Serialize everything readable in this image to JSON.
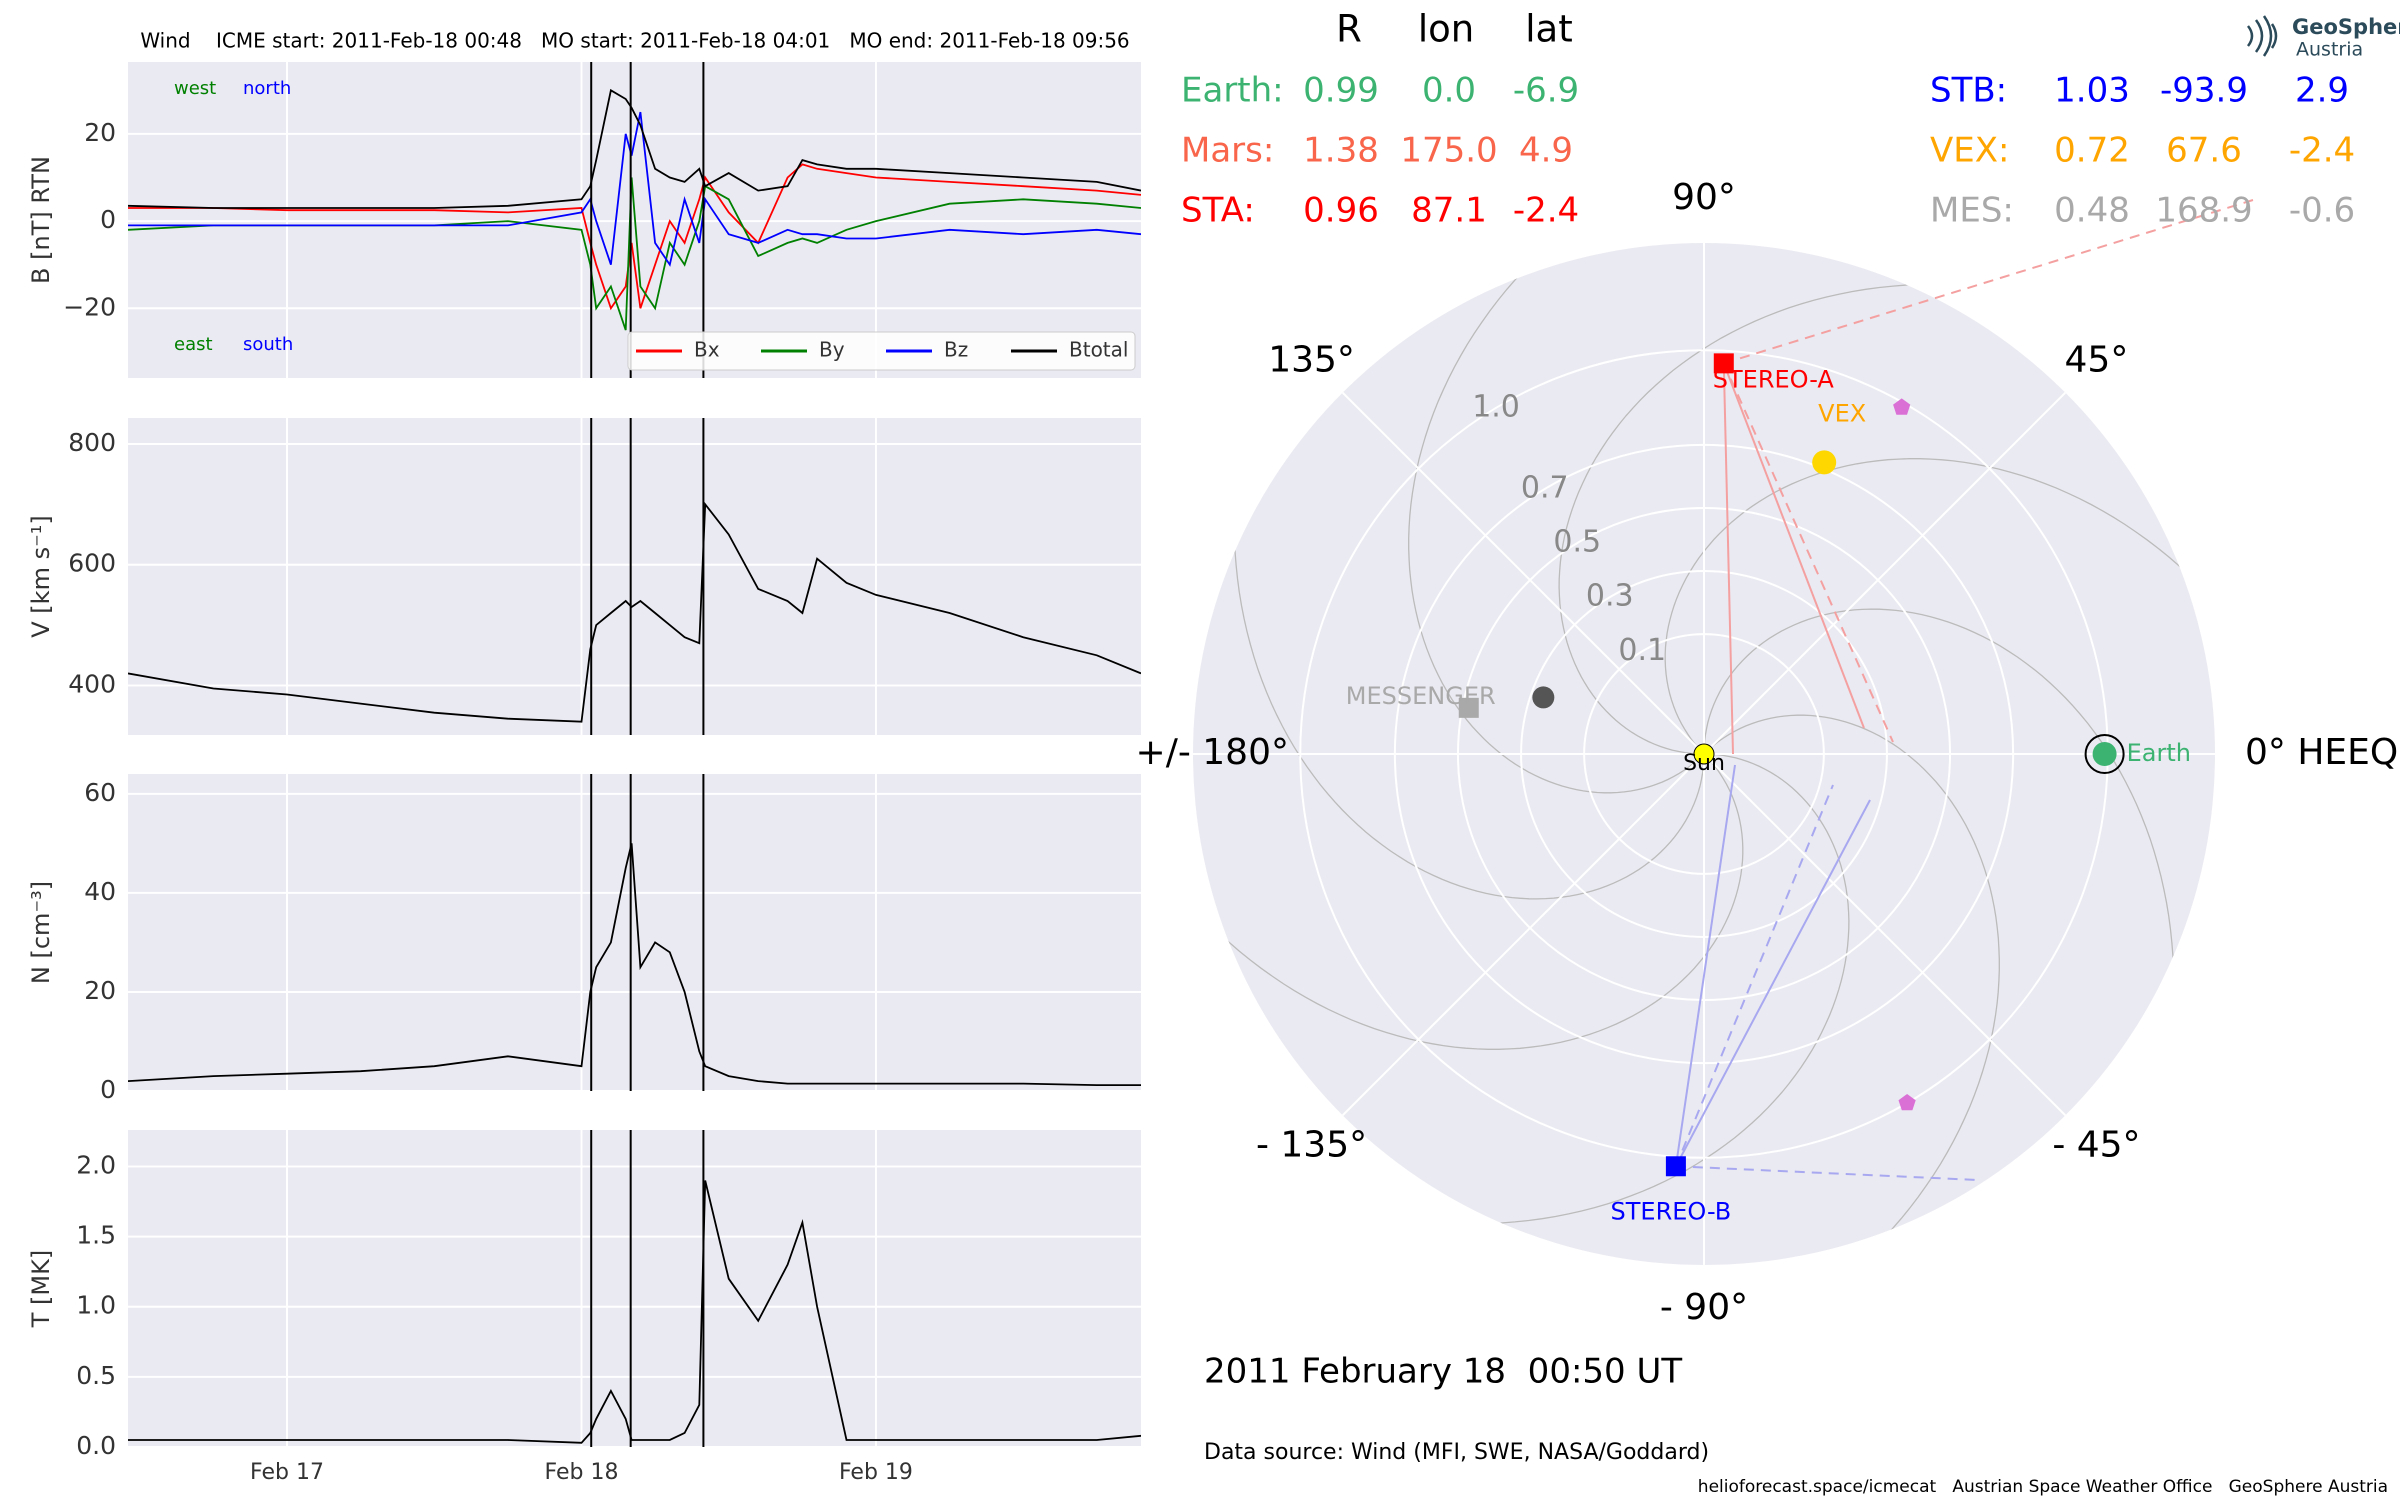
{
  "chart_data": [
    {
      "type": "line",
      "title": "Wind    ICME start: 2011-Feb-18 00:48   MO start: 2011-Feb-18 04:01   MO end: 2011-Feb-18 09:56",
      "ylabel": "B [nT] RTN",
      "x": [
        16.46,
        16.75,
        17.0,
        17.25,
        17.5,
        17.75,
        18.0,
        18.03,
        18.05,
        18.1,
        18.15,
        18.17,
        18.2,
        18.25,
        18.3,
        18.35,
        18.4,
        18.42,
        18.5,
        18.6,
        18.7,
        18.75,
        18.8,
        18.9,
        19.0,
        19.25,
        19.5,
        19.75,
        19.9
      ],
      "xlim": [
        16.46,
        19.9
      ],
      "xticks": [
        17,
        18,
        19
      ],
      "ylim": [
        -36,
        36.5
      ],
      "yticks": [
        {
          "value": -20,
          "label": "−20"
        },
        0,
        20
      ],
      "grid": true,
      "event_lines": [
        18.033,
        18.167,
        18.414
      ],
      "series": [
        {
          "name": "Bx",
          "color": "#ff0000",
          "values": [
            3,
            3,
            2.5,
            2.5,
            2.5,
            2,
            3,
            -5,
            -10,
            -20,
            -15,
            -5,
            -20,
            -10,
            0,
            -5,
            5,
            10,
            2,
            -5,
            10,
            13,
            12,
            11,
            10,
            9,
            8,
            7,
            6
          ]
        },
        {
          "name": "By",
          "color": "#008000",
          "values": [
            -2,
            -1,
            -1,
            -1,
            -1,
            0,
            -2,
            -10,
            -20,
            -15,
            -25,
            10,
            -15,
            -20,
            -5,
            -10,
            0,
            8,
            5,
            -8,
            -5,
            -4,
            -5,
            -2,
            0,
            4,
            5,
            4,
            3
          ]
        },
        {
          "name": "Bz",
          "color": "#0000ff",
          "values": [
            -1,
            -1,
            -1,
            -1,
            -1,
            -1,
            2,
            5,
            0,
            -10,
            20,
            15,
            25,
            -5,
            -10,
            5,
            -5,
            5,
            -3,
            -5,
            -2,
            -3,
            -3,
            -4,
            -4,
            -2,
            -3,
            -2,
            -3
          ]
        },
        {
          "name": "Btotal",
          "color": "#000000",
          "values": [
            3.5,
            3,
            3,
            3,
            3,
            3.5,
            5,
            8,
            14,
            30,
            28,
            26,
            22,
            12,
            10,
            9,
            12,
            8,
            11,
            7,
            8,
            14,
            13,
            12,
            12,
            11,
            10,
            9,
            7
          ]
        }
      ],
      "legend": "lower right",
      "annotations": [
        {
          "text": "west",
          "color": "#008000"
        },
        {
          "text": "north",
          "color": "#0000ff"
        },
        {
          "text": "east",
          "color": "#008000"
        },
        {
          "text": "south",
          "color": "#0000ff"
        }
      ]
    },
    {
      "type": "line",
      "ylabel": "V [km s⁻¹]",
      "x": [
        16.46,
        16.75,
        17.0,
        17.25,
        17.5,
        17.75,
        18.0,
        18.03,
        18.05,
        18.1,
        18.15,
        18.17,
        18.2,
        18.25,
        18.3,
        18.35,
        18.4,
        18.42,
        18.5,
        18.6,
        18.7,
        18.75,
        18.8,
        18.9,
        19.0,
        19.25,
        19.5,
        19.75,
        19.9
      ],
      "xlim": [
        16.46,
        19.9
      ],
      "xticks": [
        17,
        18,
        19
      ],
      "ylim": [
        318,
        843
      ],
      "yticks": [
        400,
        600,
        800
      ],
      "grid": true,
      "event_lines": [
        18.033,
        18.167,
        18.414
      ],
      "series": [
        {
          "color": "#000000",
          "values": [
            420,
            395,
            385,
            370,
            355,
            345,
            340,
            460,
            500,
            520,
            540,
            530,
            540,
            520,
            500,
            480,
            470,
            700,
            650,
            560,
            540,
            520,
            610,
            570,
            550,
            520,
            480,
            450,
            420
          ]
        }
      ]
    },
    {
      "type": "line",
      "ylabel": "N [cm⁻³]",
      "x": [
        16.46,
        16.75,
        17.0,
        17.25,
        17.5,
        17.75,
        18.0,
        18.03,
        18.05,
        18.1,
        18.15,
        18.17,
        18.2,
        18.25,
        18.3,
        18.35,
        18.4,
        18.42,
        18.5,
        18.6,
        18.7,
        18.75,
        18.8,
        18.9,
        19.0,
        19.25,
        19.5,
        19.75,
        19.9
      ],
      "xlim": [
        16.46,
        19.9
      ],
      "xticks": [
        17,
        18,
        19
      ],
      "ylim": [
        0,
        64
      ],
      "yticks": [
        0,
        20,
        40,
        60
      ],
      "grid": true,
      "event_lines": [
        18.033,
        18.167,
        18.414
      ],
      "series": [
        {
          "color": "#000000",
          "values": [
            2,
            3,
            3.5,
            4,
            5,
            7,
            5,
            20,
            25,
            30,
            45,
            50,
            25,
            30,
            28,
            20,
            8,
            5,
            3,
            2,
            1.5,
            1.5,
            1.5,
            1.5,
            1.5,
            1.5,
            1.5,
            1.2,
            1.2
          ]
        }
      ]
    },
    {
      "type": "line",
      "ylabel": "T [MK]",
      "x": [
        16.46,
        16.75,
        17.0,
        17.25,
        17.5,
        17.75,
        18.0,
        18.03,
        18.05,
        18.1,
        18.15,
        18.17,
        18.2,
        18.25,
        18.3,
        18.35,
        18.4,
        18.42,
        18.5,
        18.6,
        18.7,
        18.75,
        18.8,
        18.9,
        19.0,
        19.25,
        19.5,
        19.75,
        19.9
      ],
      "xlim": [
        16.46,
        19.9
      ],
      "xticks": [
        {
          "value": 17,
          "label": "Feb 17"
        },
        {
          "value": 18,
          "label": "Feb 18"
        },
        {
          "value": 19,
          "label": "Feb 19"
        }
      ],
      "ylim": [
        0,
        2.26
      ],
      "yticks": [
        {
          "value": 0,
          "label": "0.0"
        },
        0.5,
        {
          "value": 1,
          "label": "1.0"
        },
        1.5,
        {
          "value": 2,
          "label": "2.0"
        }
      ],
      "grid": true,
      "event_lines": [
        18.033,
        18.167,
        18.414
      ],
      "series": [
        {
          "color": "#000000",
          "values": [
            0.05,
            0.05,
            0.05,
            0.05,
            0.05,
            0.05,
            0.03,
            0.1,
            0.2,
            0.4,
            0.2,
            0.05,
            0.05,
            0.05,
            0.05,
            0.1,
            0.3,
            1.9,
            1.2,
            0.9,
            1.3,
            1.6,
            1.0,
            0.05,
            0.05,
            0.05,
            0.05,
            0.05,
            0.08
          ]
        }
      ]
    },
    {
      "type": "polar",
      "title": "2011 February 18  00:50 UT",
      "subtitle": "Data source: Wind (MFI, SWE, NASA/Goddard)",
      "rlim": [
        0,
        1.34
      ],
      "rorigin": -0.28,
      "rticks": [
        0.1,
        0.3,
        0.5,
        0.7,
        {
          "value": 1,
          "label": "1.0"
        }
      ],
      "thetaticks": [
        {
          "value": 0,
          "label": "0° HEEQ"
        },
        {
          "value": 45,
          "label": "45°"
        },
        {
          "value": 90,
          "label": "90°"
        },
        {
          "value": 135,
          "label": "135°"
        },
        {
          "value": 180,
          "label": "+/- 180°"
        },
        {
          "value": -135,
          "label": "- 135°"
        },
        {
          "value": -90,
          "label": "- 90°"
        },
        {
          "value": -45,
          "label": "- 45°"
        }
      ],
      "columns": [
        "R",
        "lon",
        "lat"
      ],
      "sun_label": "Sun",
      "bodies": [
        {
          "name": "Earth:",
          "label": "Earth",
          "color": "#3cb371",
          "marker": "circle",
          "r": 0.99,
          "lon": 0.0,
          "lat": -6.9,
          "value_labels": [
            "0.99",
            "0.0",
            "-6.9"
          ]
        },
        {
          "name": "Mars:",
          "color": "#f8654a",
          "r": 1.38,
          "lon": 175.0,
          "lat": 4.9,
          "value_labels": [
            "1.38",
            "175.0",
            "4.9"
          ]
        },
        {
          "name": "STA:",
          "label": "STEREO-A",
          "color": "#ff0000",
          "marker": "square",
          "r": 0.96,
          "lon": 87.1,
          "lat": -2.4
        },
        {
          "name": "STB:",
          "label": "STEREO-B",
          "color": "#0000ff",
          "marker": "square",
          "r": 1.03,
          "lon": -93.9,
          "lat": 2.9
        },
        {
          "name": "VEX:",
          "label": "VEX",
          "color": "#ffa500",
          "marker_color": "#ffd700",
          "marker": "circle",
          "r": 0.72,
          "lon": 67.6,
          "lat": -2.4
        },
        {
          "name": "MES:",
          "label": "MESSENGER",
          "color": "#a9a9a9",
          "marker": "square",
          "r": 0.48,
          "lon": 168.9,
          "lat": -0.6
        }
      ],
      "other_markers": [
        {
          "r": 0.985,
          "lon": 60.3,
          "color": "#da70d6",
          "marker": "pentagon"
        },
        {
          "r": 1.0,
          "lon": -59.8,
          "color": "#da70d6",
          "marker": "pentagon"
        },
        {
          "r": 0.26,
          "lon": 160.6,
          "color": "#555555",
          "marker": "circle"
        }
      ]
    }
  ],
  "footer": "helioforecast.space/icmecat   Austrian Space Weather Office   GeoSphere Austria",
  "logo": {
    "line1": "GeoSphere",
    "line2": "Austria"
  }
}
